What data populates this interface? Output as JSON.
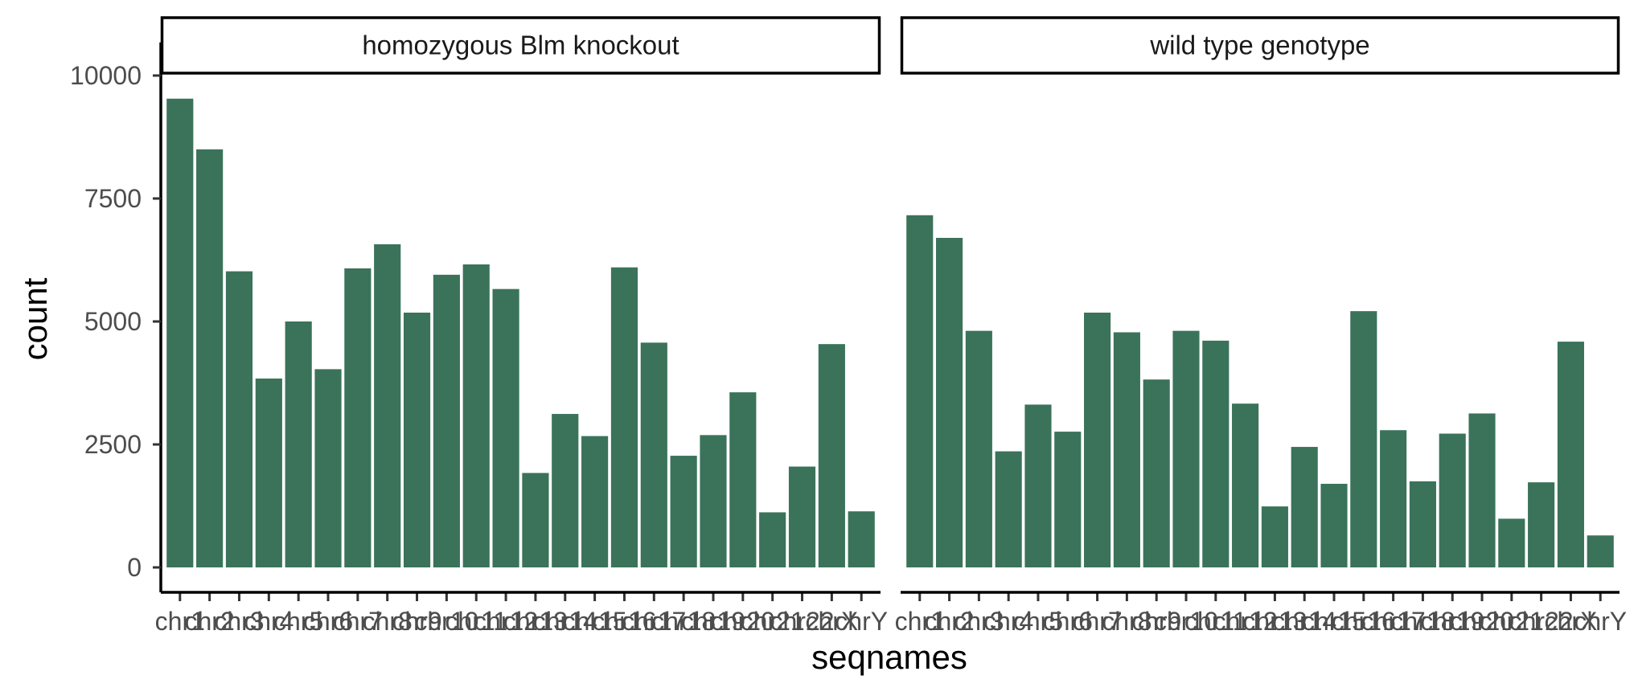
{
  "chart_data": {
    "type": "bar",
    "xlabel": "seqnames",
    "ylabel": "count",
    "ylim": [
      0,
      11000
    ],
    "yticks": [
      0,
      2500,
      5000,
      7500,
      10000
    ],
    "ytick_labels": [
      "0",
      "2500",
      "5000",
      "7500",
      "10000"
    ],
    "grid": false,
    "legend": "none",
    "bar_color": "#3a735a",
    "categories": [
      "chr1",
      "chr2",
      "chr3",
      "chr4",
      "chr5",
      "chr6",
      "chr7",
      "chr8",
      "chr9",
      "chr10",
      "chr11",
      "chr12",
      "chr13",
      "chr14",
      "chr15",
      "chr16",
      "chr17",
      "chr18",
      "chr19",
      "chr20",
      "chr21",
      "chr22",
      "chrX",
      "chrY"
    ],
    "panels": [
      {
        "strip": "homozygous Blm knockout",
        "values": [
          9530,
          8500,
          6020,
          3840,
          5000,
          4030,
          6080,
          6570,
          5180,
          5950,
          6160,
          5660,
          1920,
          3120,
          2670,
          6100,
          4570,
          2270,
          2690,
          3560,
          1120,
          2050,
          4540,
          1140
        ]
      },
      {
        "strip": "wild type genotype",
        "values": [
          7160,
          6700,
          4810,
          2360,
          3310,
          2760,
          5180,
          4780,
          3820,
          4810,
          4610,
          3330,
          1240,
          2450,
          1700,
          5210,
          2790,
          1750,
          2720,
          3130,
          990,
          1730,
          4590,
          650
        ]
      }
    ]
  }
}
